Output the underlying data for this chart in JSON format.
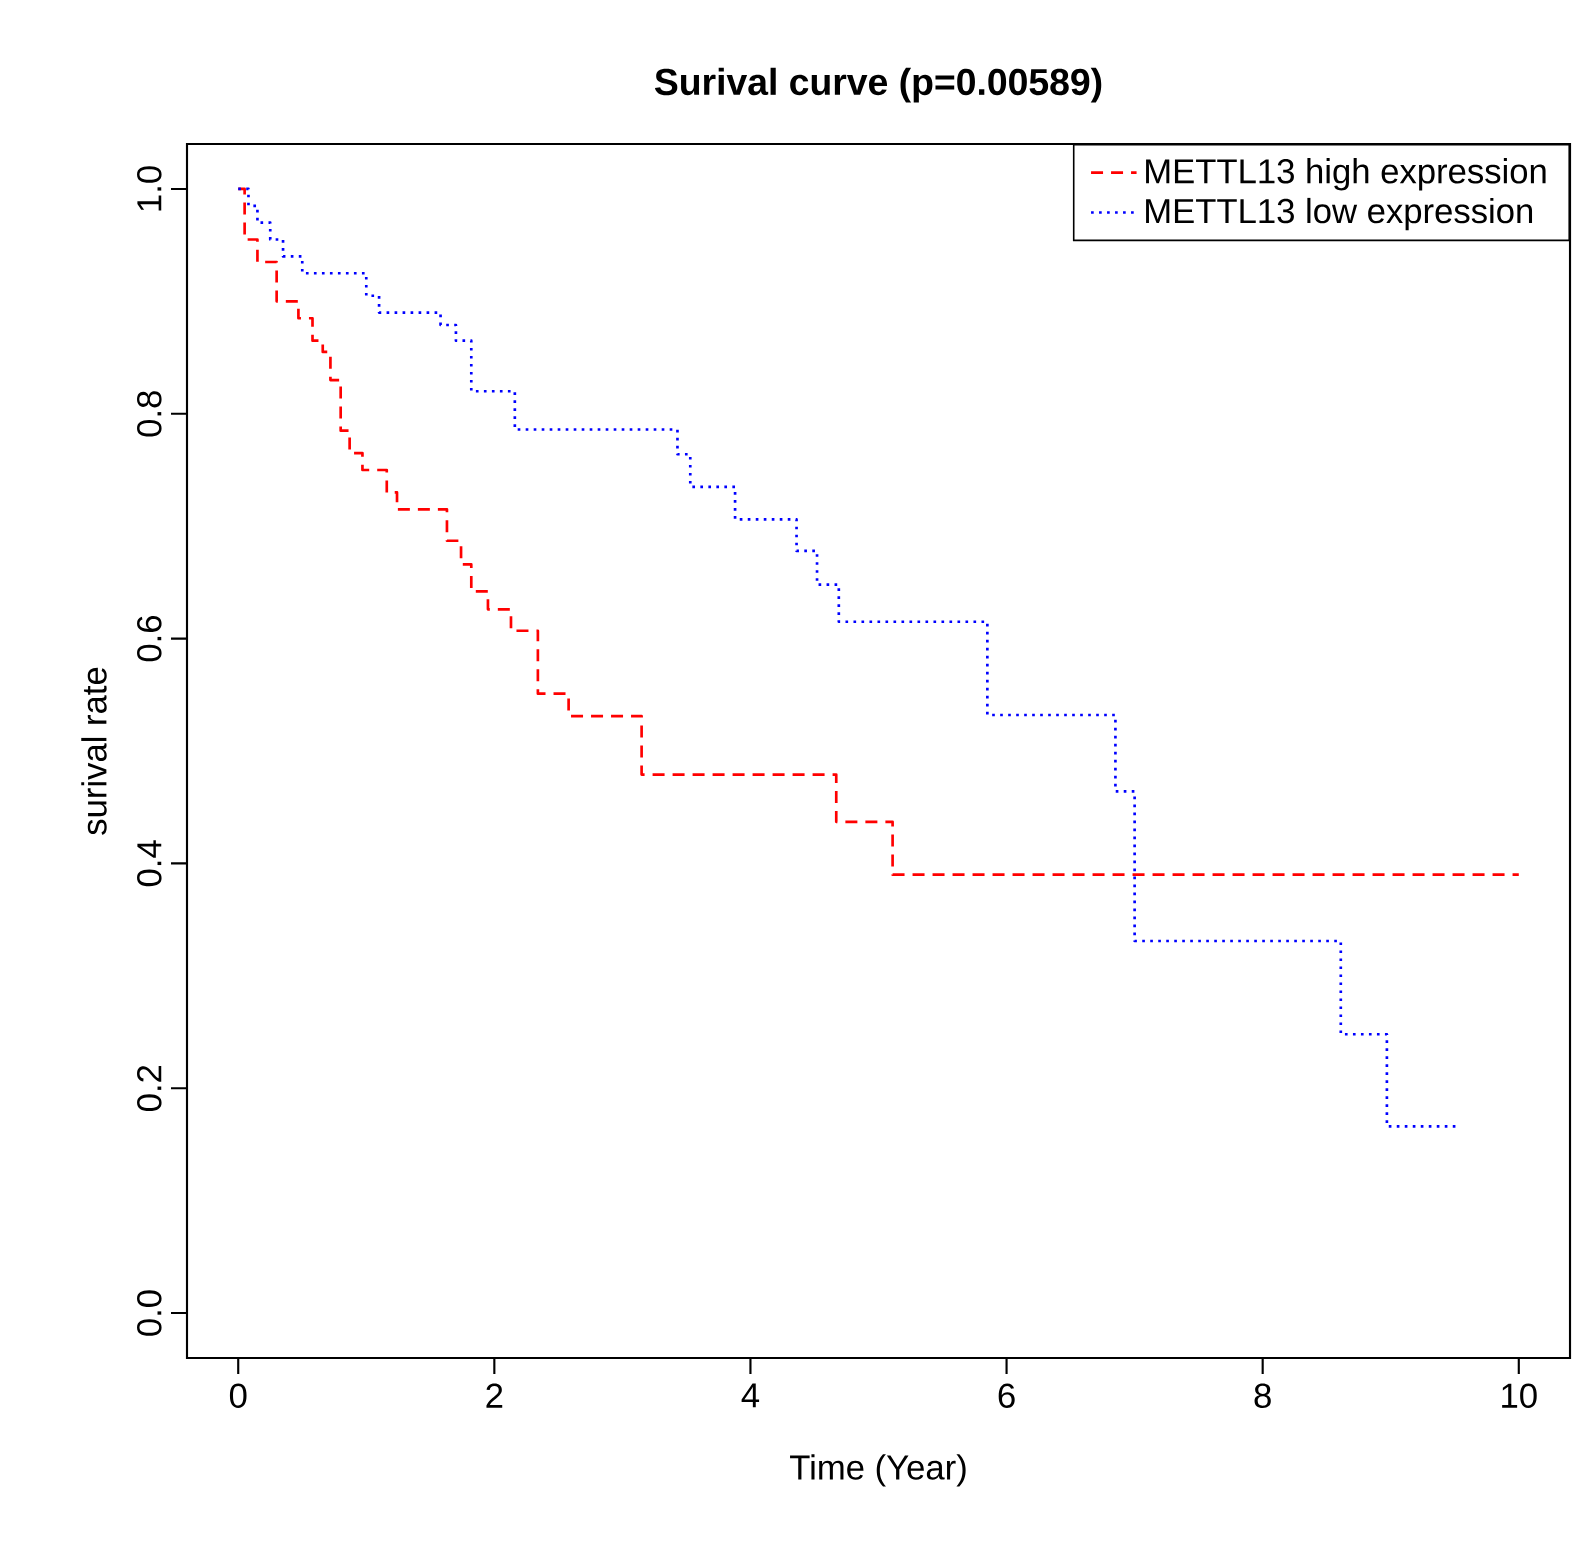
{
  "chart_data": {
    "type": "step",
    "title": "Surival curve (p=0.00589)",
    "xlabel": "Time (Year)",
    "ylabel": "surival rate",
    "xlim": [
      -0.4,
      10.4
    ],
    "ylim": [
      -0.04,
      1.04
    ],
    "xticks": [
      0,
      2,
      4,
      6,
      8,
      10
    ],
    "yticks": [
      {
        "value": 0,
        "label": "0.0"
      },
      {
        "value": 0.2,
        "label": "0.2"
      },
      {
        "value": 0.4,
        "label": "0.4"
      },
      {
        "value": 0.6,
        "label": "0.6"
      },
      {
        "value": 0.8,
        "label": "0.8"
      },
      {
        "value": 1,
        "label": "1.0"
      }
    ],
    "legend": "top right",
    "grid": false,
    "series": [
      {
        "name": "METTL13 high expression",
        "color": "#ff0000",
        "line_style": "dashed",
        "x": [
          0,
          0.05,
          0.15,
          0.3,
          0.47,
          0.58,
          0.66,
          0.72,
          0.8,
          0.87,
          0.97,
          1.16,
          1.24,
          1.63,
          1.74,
          1.82,
          1.95,
          2.13,
          2.34,
          2.58,
          3.15,
          4.67,
          5.11,
          10
        ],
        "values": [
          1.0,
          0.955,
          0.935,
          0.9,
          0.885,
          0.865,
          0.855,
          0.83,
          0.785,
          0.765,
          0.75,
          0.73,
          0.715,
          0.687,
          0.666,
          0.642,
          0.626,
          0.607,
          0.551,
          0.531,
          0.479,
          0.437,
          0.39,
          0.39
        ]
      },
      {
        "name": "METTL13 low expression",
        "color": "#0000ff",
        "line_style": "dotted",
        "x": [
          0,
          0.08,
          0.15,
          0.25,
          0.35,
          0.5,
          1.0,
          1.1,
          1.58,
          1.7,
          1.82,
          2.16,
          3.43,
          3.53,
          3.88,
          4.36,
          4.52,
          4.69,
          5.85,
          6.85,
          7.0,
          8.61,
          8.97,
          9.54
        ],
        "values": [
          1.0,
          0.985,
          0.97,
          0.955,
          0.94,
          0.925,
          0.905,
          0.89,
          0.879,
          0.865,
          0.82,
          0.786,
          0.764,
          0.735,
          0.706,
          0.678,
          0.648,
          0.615,
          0.532,
          0.464,
          0.331,
          0.248,
          0.166,
          0.166
        ]
      }
    ]
  }
}
